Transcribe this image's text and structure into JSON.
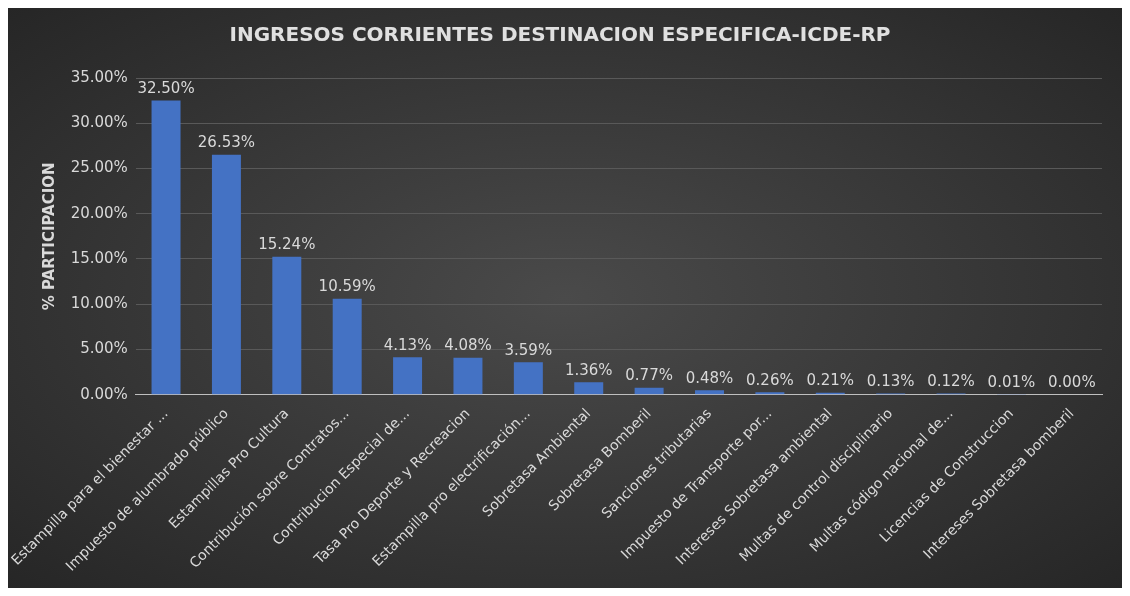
{
  "chart_data": {
    "type": "bar",
    "title": "INGRESOS CORRIENTES DESTINACION ESPECIFICA-ICDE-RP",
    "ylabel": "% PARTICIPACION",
    "categories": [
      "Estampilla para el bienestar ...",
      "Impuesto de alumbrado público",
      "Estampillas Pro Cultura",
      "Contribución sobre Contratos...",
      "Contribucion Especial de...",
      "Tasa Pro Deporte y Recreacion",
      "Estampilla pro electrificación...",
      "Sobretasa Ambiental",
      "Sobretasa Bomberil",
      "Sanciones tributarias",
      "Impuesto de Transporte por...",
      "Intereses Sobretasa ambiental",
      "Multas de control disciplinario",
      "Multas código nacional de...",
      "Licencias de Construccion",
      "Intereses Sobretasa bomberil"
    ],
    "values": [
      32.5,
      26.53,
      15.24,
      10.59,
      4.13,
      4.08,
      3.59,
      1.36,
      0.77,
      0.48,
      0.26,
      0.21,
      0.13,
      0.12,
      0.01,
      0.0
    ],
    "value_labels": [
      "32.50%",
      "26.53%",
      "15.24%",
      "10.59%",
      "4.13%",
      "4.08%",
      "3.59%",
      "1.36%",
      "0.77%",
      "0.48%",
      "0.26%",
      "0.21%",
      "0.13%",
      "0.12%",
      "0.01%",
      "0.00%"
    ],
    "color": "#4472c4",
    "ylim": [
      0,
      35
    ],
    "yticks": [
      {
        "value": 0,
        "label": "0.00%"
      },
      {
        "value": 5,
        "label": "5.00%"
      },
      {
        "value": 10,
        "label": "10.00%"
      },
      {
        "value": 15,
        "label": "15.00%"
      },
      {
        "value": 20,
        "label": "20.00%"
      },
      {
        "value": 25,
        "label": "25.00%"
      },
      {
        "value": 30,
        "label": "30.00%"
      },
      {
        "value": 35,
        "label": "35.00%"
      }
    ],
    "grid": "y",
    "legend": false
  }
}
